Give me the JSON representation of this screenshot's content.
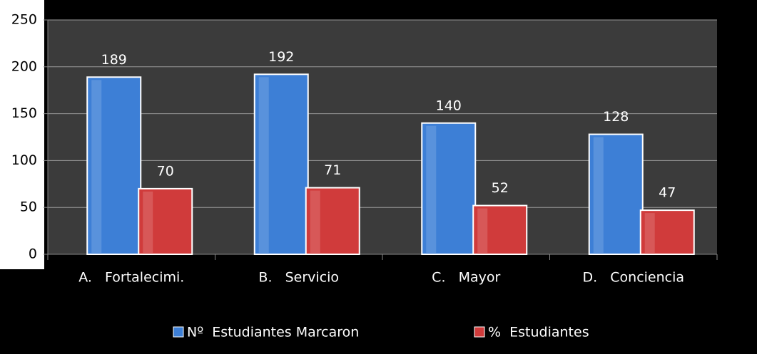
{
  "chart_data": {
    "type": "bar",
    "categories": [
      "A.   Fortalecimi.",
      "B.   Servicio",
      "C.   Mayor",
      "D.   Conciencia"
    ],
    "series": [
      {
        "name": "Nº  Estudiantes Marcaron",
        "color": "#3d7fd6",
        "values": [
          189,
          192,
          140,
          128
        ]
      },
      {
        "name": "%  Estudiantes",
        "color": "#d03b3b",
        "values": [
          70,
          71,
          52,
          47
        ]
      }
    ],
    "ylim": [
      0,
      250
    ],
    "yticks": [
      0,
      50,
      100,
      150,
      200,
      250
    ],
    "grid": true,
    "legend": "bottom"
  }
}
